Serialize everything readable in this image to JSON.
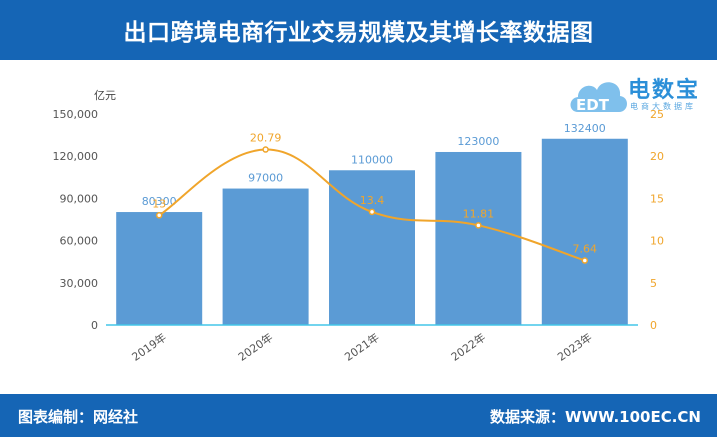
{
  "header": {
    "title": "出口跨境电商行业交易规模及其增长率数据图"
  },
  "footer": {
    "left": "图表编制：网经社",
    "right": "数据来源：WWW.100EC.CN"
  },
  "logo": {
    "text": "电数宝",
    "sub": "电商大数据库",
    "icon_letters": "EDT"
  },
  "colors": {
    "brand": "#1565b5",
    "bar": "#5b9bd5",
    "line": "#f0a52b"
  },
  "chart_data": {
    "type": "bar",
    "categories": [
      "2019年",
      "2020年",
      "2021年",
      "2022年",
      "2023年"
    ],
    "ylabel": "亿元",
    "ylim": [
      0,
      150000
    ],
    "yticks": [
      "0",
      "30,000",
      "60,000",
      "90,000",
      "120,000",
      "150,000"
    ],
    "y2lim": [
      0,
      25
    ],
    "y2ticks": [
      "0",
      "5",
      "10",
      "15",
      "20",
      "25"
    ],
    "series": [
      {
        "type": "bar",
        "values": [
          80300,
          97000,
          110000,
          123000,
          132400
        ],
        "labels": [
          "80300",
          "97000",
          "110000",
          "123000",
          "132400"
        ]
      },
      {
        "type": "line",
        "axis": "right",
        "values": [
          13,
          20.79,
          13.4,
          11.81,
          7.64
        ],
        "labels": [
          "13",
          "20.79",
          "13.4",
          "11.81",
          "7.64"
        ]
      }
    ],
    "grid": false
  }
}
